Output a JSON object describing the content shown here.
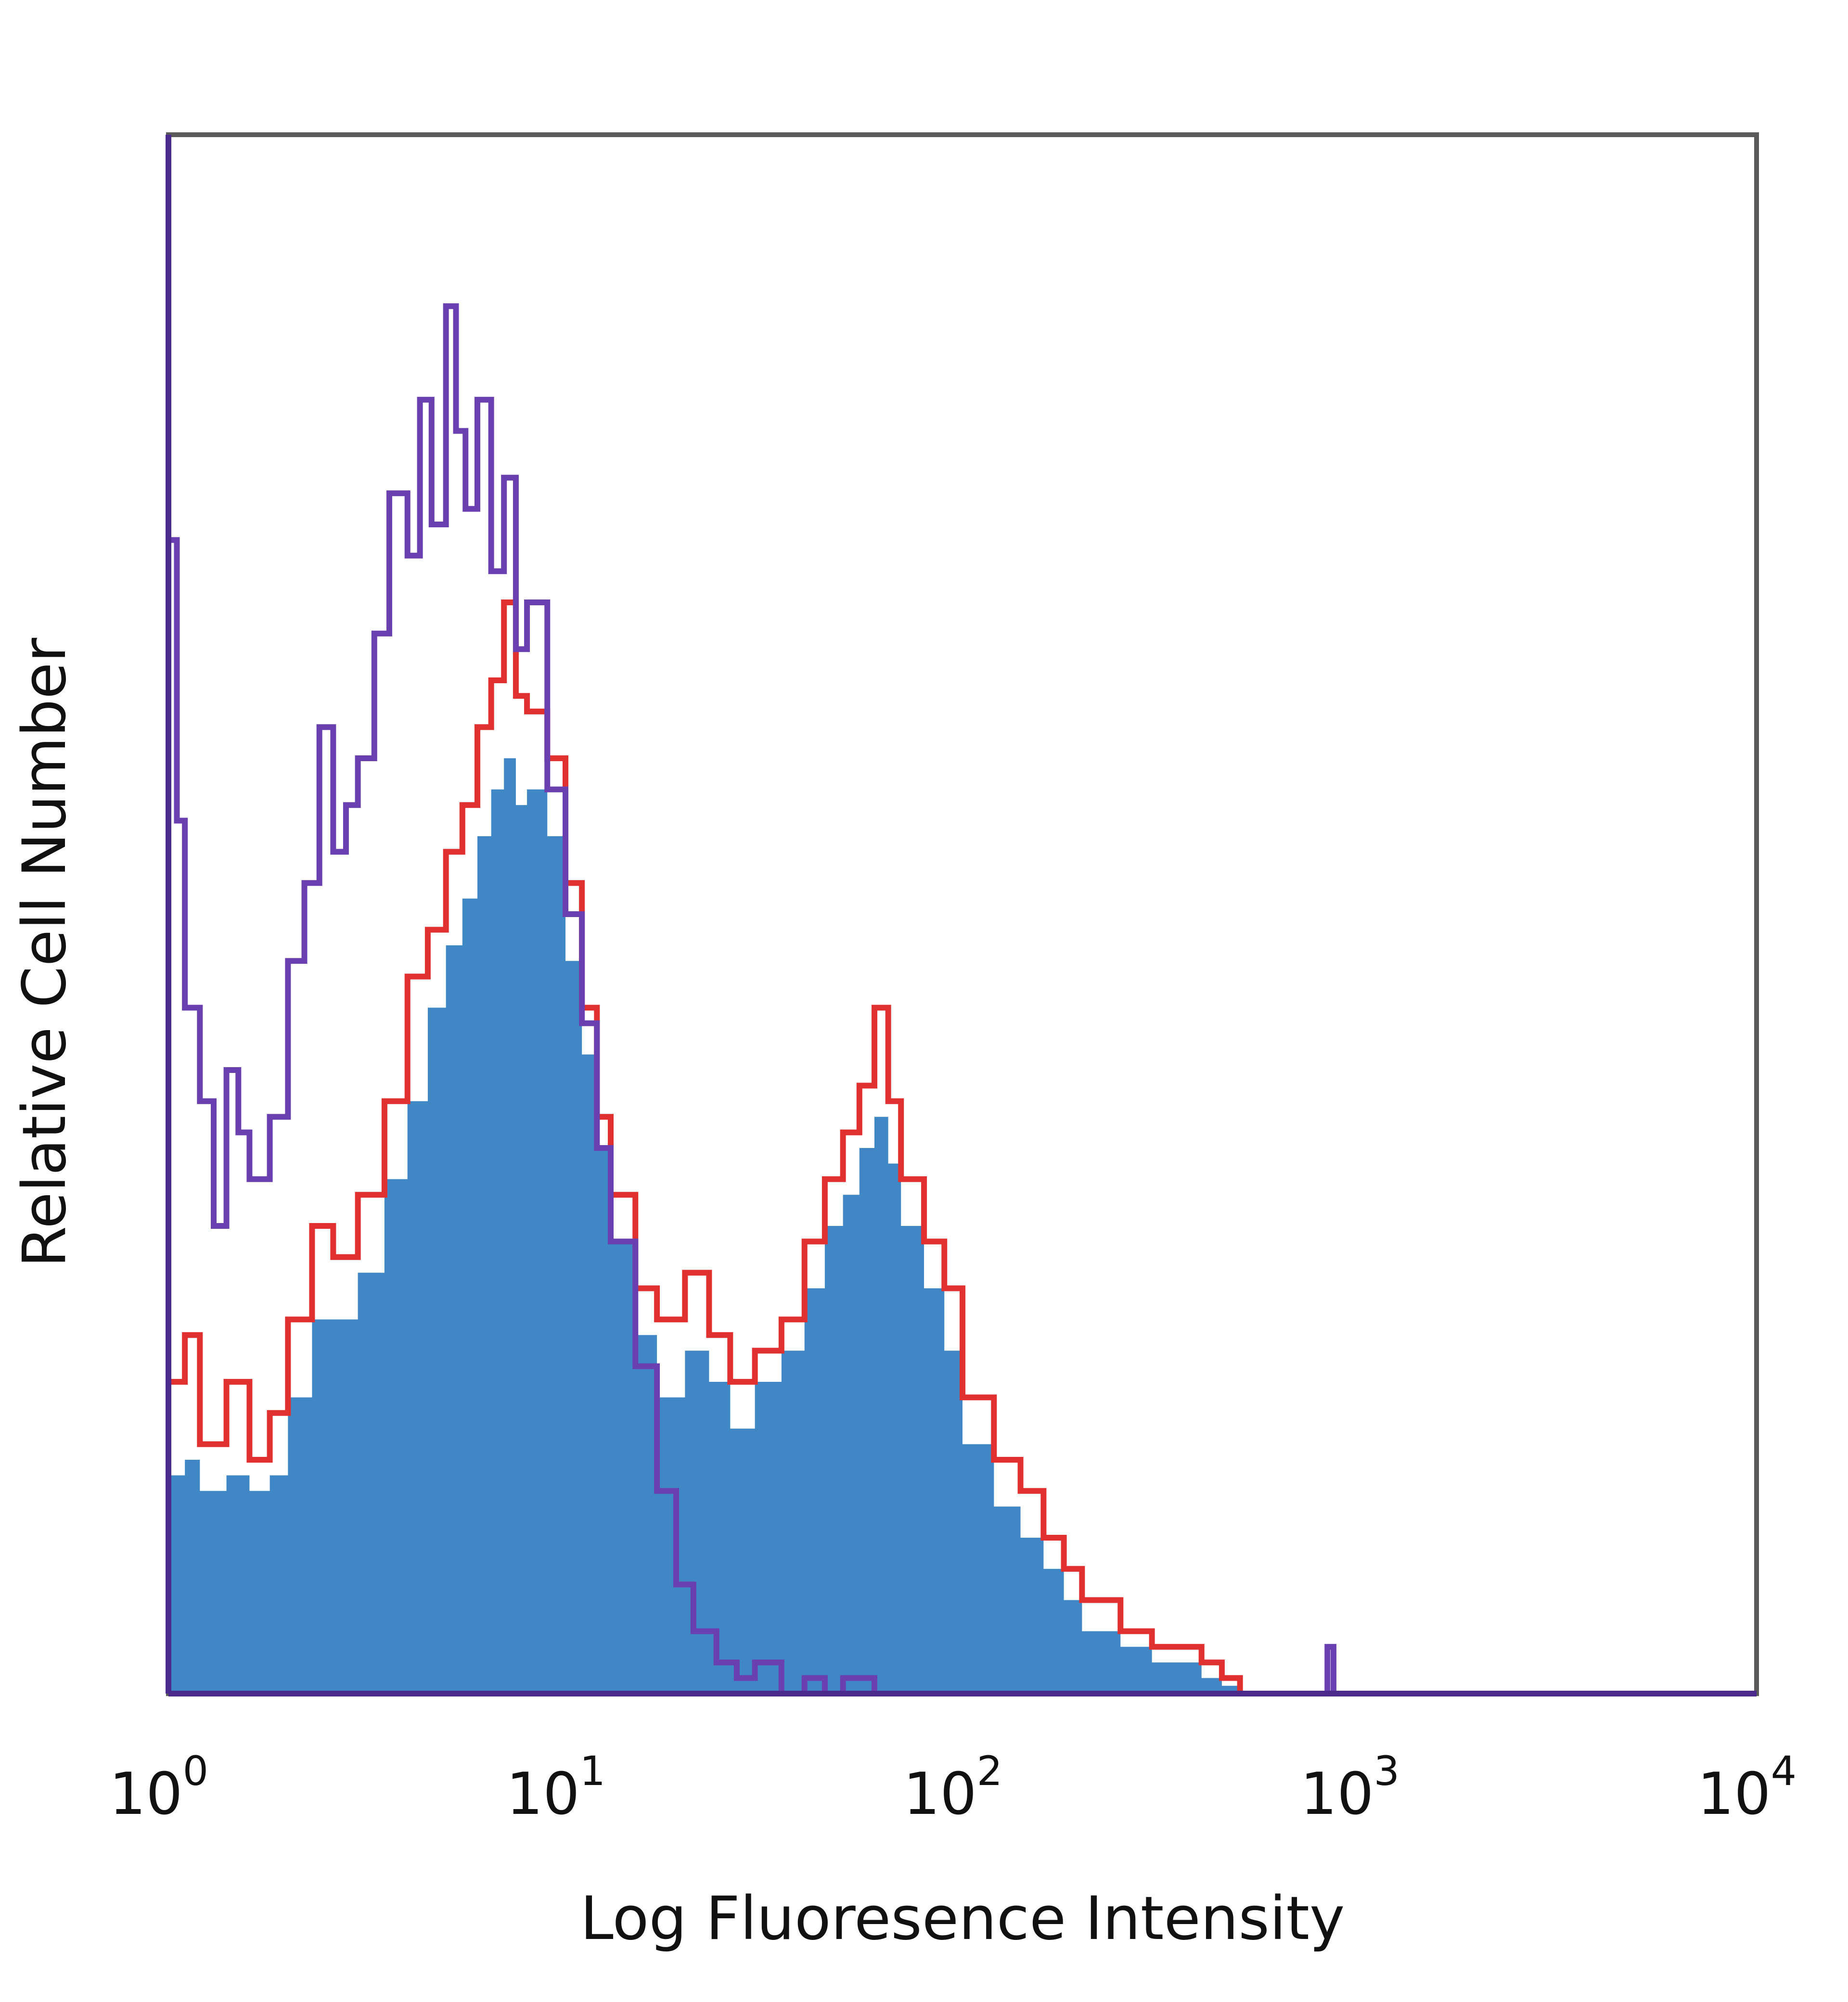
{
  "chart_data": {
    "type": "area",
    "title": "",
    "xlabel": "Log Fluoresence Intensity",
    "ylabel": "Relative Cell Number",
    "x_scale": "log",
    "xlim": [
      1,
      10000
    ],
    "ylim": [
      0,
      100
    ],
    "x_ticks": [
      {
        "base": "10",
        "exp": "0",
        "value": 1
      },
      {
        "base": "10",
        "exp": "1",
        "value": 10
      },
      {
        "base": "10",
        "exp": "2",
        "value": 100
      },
      {
        "base": "10",
        "exp": "3",
        "value": 1000
      },
      {
        "base": "10",
        "exp": "4",
        "value": 10000
      }
    ],
    "grid": false,
    "legend": "none",
    "series": [
      {
        "style": "filled",
        "color": "#3f88c5",
        "x": [
          1,
          1.1,
          1.2,
          1.4,
          1.6,
          1.8,
          2,
          2.3,
          2.6,
          3,
          3.5,
          4,
          4.5,
          5,
          5.5,
          6,
          6.5,
          7,
          7.5,
          8,
          9,
          10,
          11,
          12,
          13,
          15,
          17,
          20,
          23,
          26,
          30,
          35,
          40,
          45,
          50,
          55,
          60,
          65,
          70,
          80,
          90,
          100,
          120,
          140,
          160,
          180,
          200,
          250,
          300,
          350,
          400,
          450,
          500
        ],
        "y": [
          14,
          15,
          13,
          14,
          13,
          14,
          19,
          24,
          24,
          27,
          33,
          38,
          44,
          48,
          51,
          55,
          58,
          60,
          57,
          58,
          55,
          47,
          41,
          35,
          29,
          23,
          19,
          22,
          20,
          17,
          20,
          22,
          26,
          30,
          32,
          35,
          37,
          34,
          30,
          26,
          22,
          16,
          12,
          10,
          8,
          6,
          4,
          3,
          2,
          2,
          1,
          0.5,
          0
        ]
      },
      {
        "style": "line",
        "color": "#e03030",
        "x": [
          1,
          1.1,
          1.2,
          1.4,
          1.6,
          1.8,
          2,
          2.3,
          2.6,
          3,
          3.5,
          4,
          4.5,
          5,
          5.5,
          6,
          6.5,
          7,
          7.5,
          8,
          9,
          10,
          11,
          12,
          13,
          15,
          17,
          20,
          23,
          26,
          30,
          35,
          40,
          45,
          50,
          55,
          60,
          65,
          70,
          80,
          90,
          100,
          120,
          140,
          160,
          180,
          200,
          250,
          300,
          350,
          400,
          450,
          500
        ],
        "y": [
          20,
          23,
          16,
          20,
          15,
          18,
          24,
          30,
          28,
          32,
          38,
          46,
          49,
          54,
          57,
          62,
          65,
          70,
          64,
          63,
          60,
          52,
          44,
          37,
          32,
          26,
          24,
          27,
          23,
          20,
          22,
          24,
          29,
          33,
          36,
          39,
          44,
          38,
          33,
          29,
          26,
          19,
          15,
          13,
          10,
          8,
          6,
          4,
          3,
          3,
          2,
          1,
          0
        ]
      },
      {
        "style": "line",
        "color": "#6a3fb0",
        "x": [
          1,
          1.05,
          1.1,
          1.2,
          1.3,
          1.4,
          1.5,
          1.6,
          1.8,
          2,
          2.2,
          2.4,
          2.6,
          2.8,
          3,
          3.3,
          3.6,
          4,
          4.3,
          4.6,
          5,
          5.3,
          5.6,
          6,
          6.5,
          7,
          7.5,
          8,
          9,
          10,
          11,
          12,
          13,
          15,
          17,
          19,
          21,
          24,
          27,
          30,
          35,
          40,
          45,
          50,
          60,
          800,
          830,
          860,
          900,
          10000
        ],
        "y": [
          74,
          56,
          44,
          38,
          30,
          40,
          36,
          33,
          37,
          47,
          52,
          62,
          54,
          57,
          60,
          68,
          77,
          73,
          83,
          75,
          89,
          81,
          76,
          83,
          72,
          78,
          67,
          70,
          58,
          50,
          43,
          35,
          29,
          21,
          13,
          7,
          4,
          2,
          1,
          2,
          0,
          1,
          0,
          1,
          0,
          0,
          3,
          0,
          0,
          0
        ]
      }
    ]
  }
}
